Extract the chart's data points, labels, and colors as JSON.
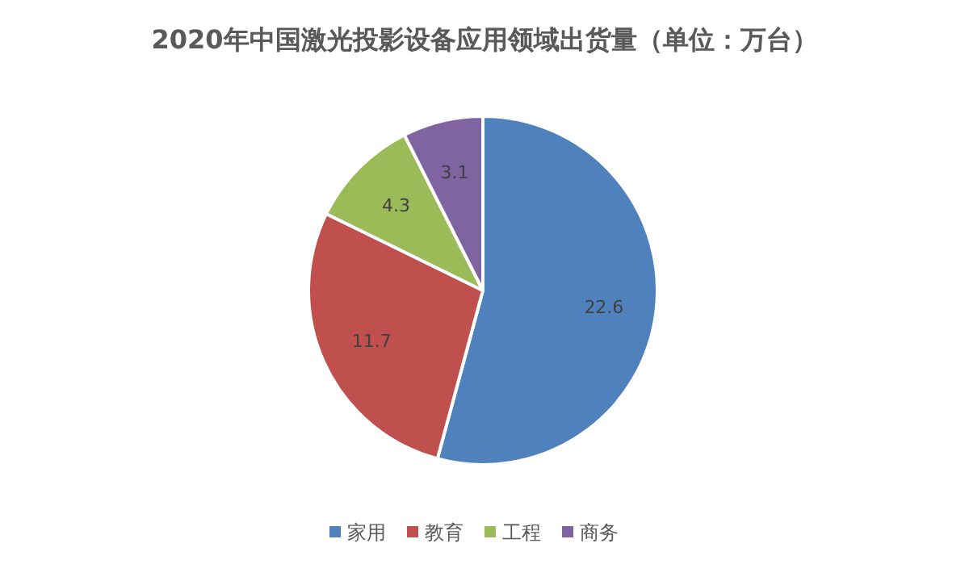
{
  "chart_data": {
    "type": "pie",
    "title": "2020年中国激光投影设备应用领域出货量（单位：万台）",
    "categories": [
      "家用",
      "教育",
      "工程",
      "商务"
    ],
    "values": [
      22.6,
      11.7,
      4.3,
      3.1
    ],
    "colors": [
      "#4f81bd",
      "#c0504d",
      "#9bbb59",
      "#8064a2"
    ],
    "data_labels": true,
    "legend": "bottom"
  }
}
